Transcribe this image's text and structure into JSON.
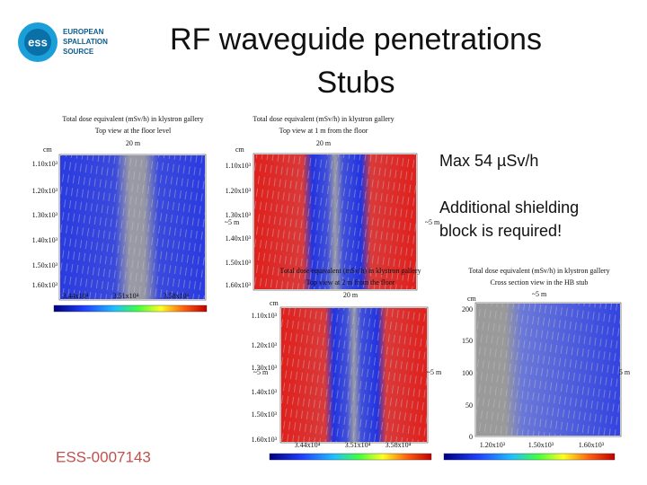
{
  "header": {
    "logo_mark": "ess",
    "logo": [
      "EUROPEAN",
      "SPALLATION",
      "SOURCE"
    ],
    "title": [
      "RF waveguide penetrations",
      "Stubs"
    ]
  },
  "notes": [
    "Max 54 µSv/h",
    "Additional shielding",
    "block is required!"
  ],
  "footer": "ESS-0007143",
  "panels": [
    {
      "title": [
        "Total dose equivalent (mSv/h) in klystron gallery",
        "Top view at the floor level"
      ],
      "width_label": "20 m",
      "unit": "cm",
      "yticks": [
        "1.10x10³",
        "1.20x10³",
        "1.30x10³",
        "1.40x10³",
        "1.50x10³",
        "1.60x10³"
      ],
      "xticks": [
        "3.44x10⁴",
        "3.51x10⁴",
        "3.58x10⁴"
      ]
    },
    {
      "title": [
        "Total dose equivalent (mSv/h) in klystron gallery",
        "Top view at 1 m from the floor"
      ],
      "width_label": "20 m",
      "unit": "cm",
      "side_label": "~5 m",
      "yticks": [
        "1.10x10³",
        "1.20x10³",
        "1.30x10³",
        "1.40x10³",
        "1.50x10³",
        "1.60x10³"
      ]
    },
    {
      "title": [
        "Total dose equivalent (mSv/h) in klystron gallery",
        "Top view at 2 m from the floor"
      ],
      "width_label": "20 m",
      "unit": "cm",
      "side_label": "~5 m",
      "yticks": [
        "1.10x10³",
        "1.20x10³",
        "1.30x10³",
        "1.40x10³",
        "1.50x10³",
        "1.60x10³"
      ],
      "xticks": [
        "3.44x10⁴",
        "3.51x10⁴",
        "3.58x10⁴"
      ]
    },
    {
      "title": [
        "Total dose equivalent (mSv/h) in klystron gallery",
        "Cross section view in the HB stub"
      ],
      "width_label": "~5 m",
      "unit": "cm",
      "side_label": "5 m",
      "yticks": [
        "200",
        "150",
        "100",
        "50",
        "0"
      ],
      "xticks": [
        "1.20x10³",
        "1.50x10³",
        "1.60x10³"
      ]
    }
  ]
}
